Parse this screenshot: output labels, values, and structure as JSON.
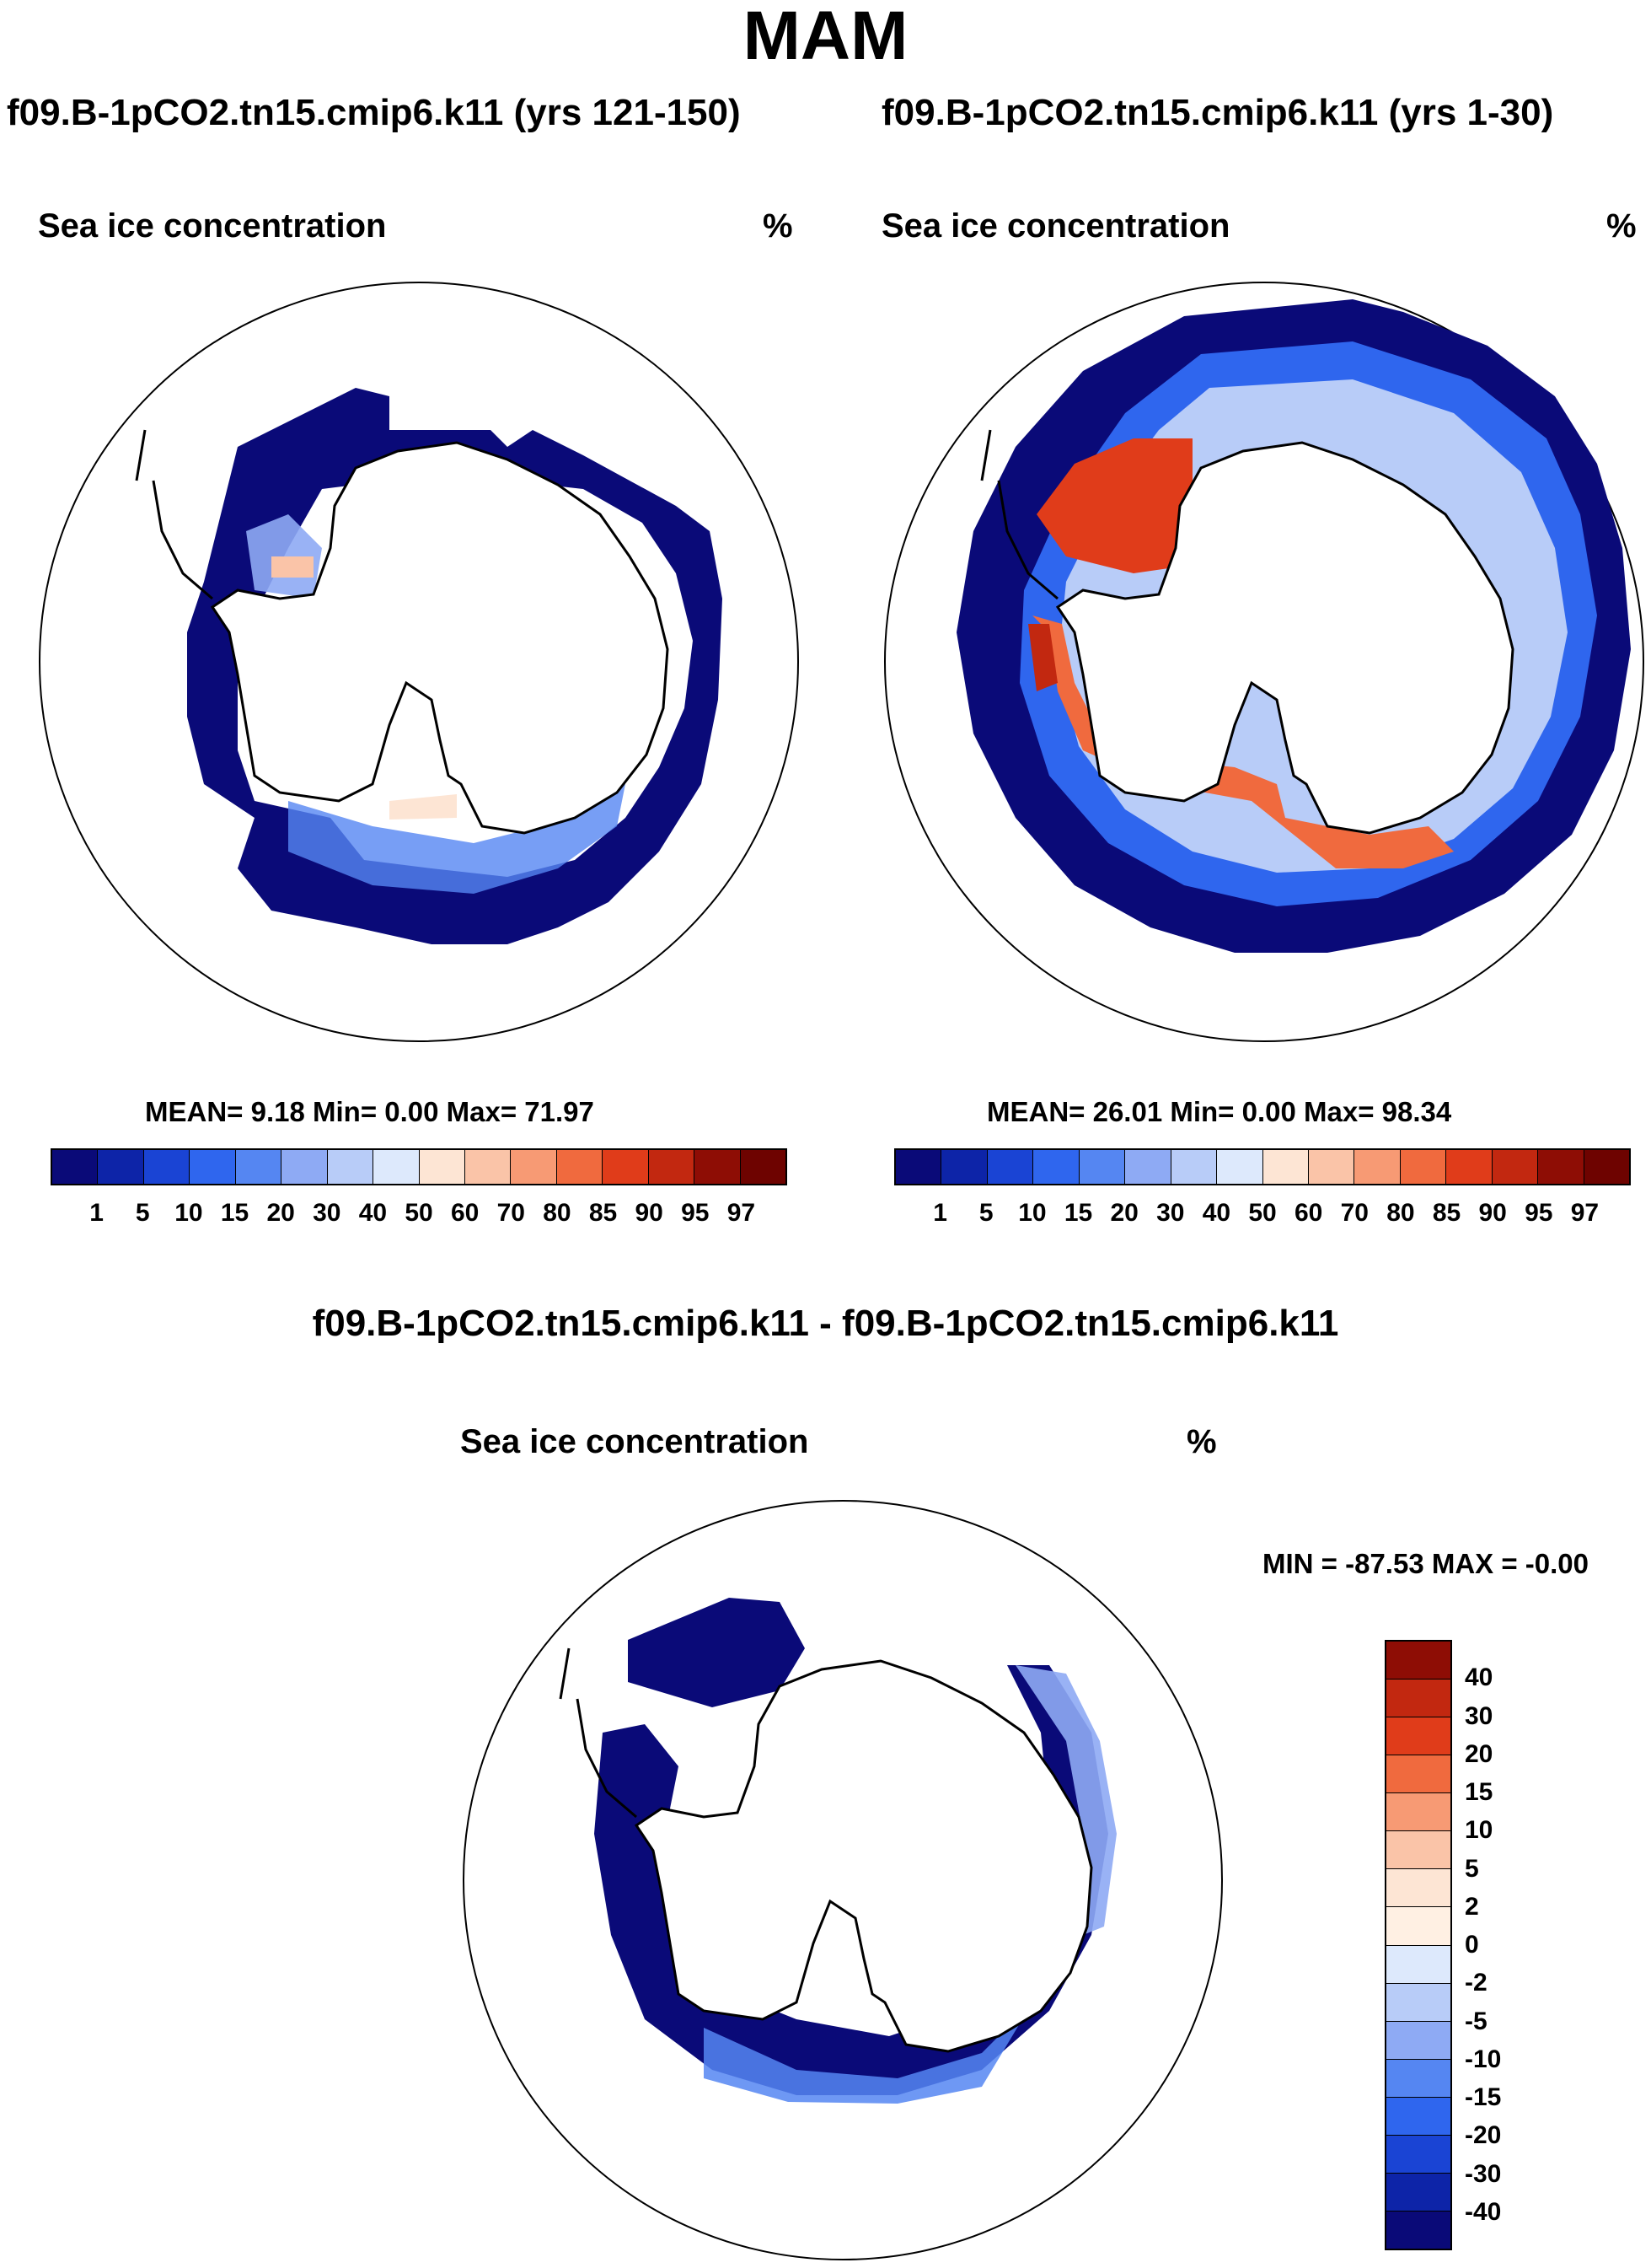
{
  "figure": {
    "season": "MAM",
    "panels": [
      {
        "case_title": "f09.B-1pCO2.tn15.cmip6.k11 (yrs 121-150)",
        "variable": "Sea ice concentration",
        "units": "%",
        "stats": "MEAN=  9.18  Min=   0.00  Max=  71.97"
      },
      {
        "case_title": "f09.B-1pCO2.tn15.cmip6.k11 (yrs 1-30)",
        "variable": "Sea ice concentration",
        "units": "%",
        "stats": "MEAN=  26.01  Min=   0.00  Max=  98.34"
      },
      {
        "case_title": "f09.B-1pCO2.tn15.cmip6.k11 - f09.B-1pCO2.tn15.cmip6.k11",
        "variable": "Sea ice concentration",
        "units": "%",
        "stats": "MIN = -87.53 MAX =  -0.00"
      }
    ],
    "colorbar_levels": [
      "1",
      "5",
      "10",
      "15",
      "20",
      "30",
      "40",
      "50",
      "60",
      "70",
      "80",
      "85",
      "90",
      "95",
      "97"
    ],
    "colorbar_colors": [
      "#0a0a78",
      "#0d24a8",
      "#1a44d4",
      "#2f66ee",
      "#5586f2",
      "#8eaaf4",
      "#b8ccf8",
      "#dde9fc",
      "#fde5d4",
      "#fac4a8",
      "#f79a74",
      "#f06a3e",
      "#e03c1a",
      "#c22810",
      "#8e0d05",
      "#6e0300"
    ],
    "diff_levels": [
      "40",
      "30",
      "20",
      "15",
      "10",
      "5",
      "2",
      "0",
      "-2",
      "-5",
      "-10",
      "-15",
      "-20",
      "-30",
      "-40"
    ],
    "diff_colors": [
      "#8e0d05",
      "#c22810",
      "#e03c1a",
      "#f06a3e",
      "#f79a74",
      "#fac4a8",
      "#fde5d4",
      "#fff0e3",
      "#dde9fc",
      "#b8ccf8",
      "#8eaaf4",
      "#5586f2",
      "#2f66ee",
      "#1a44d4",
      "#0d24a8",
      "#0a0a78"
    ]
  }
}
